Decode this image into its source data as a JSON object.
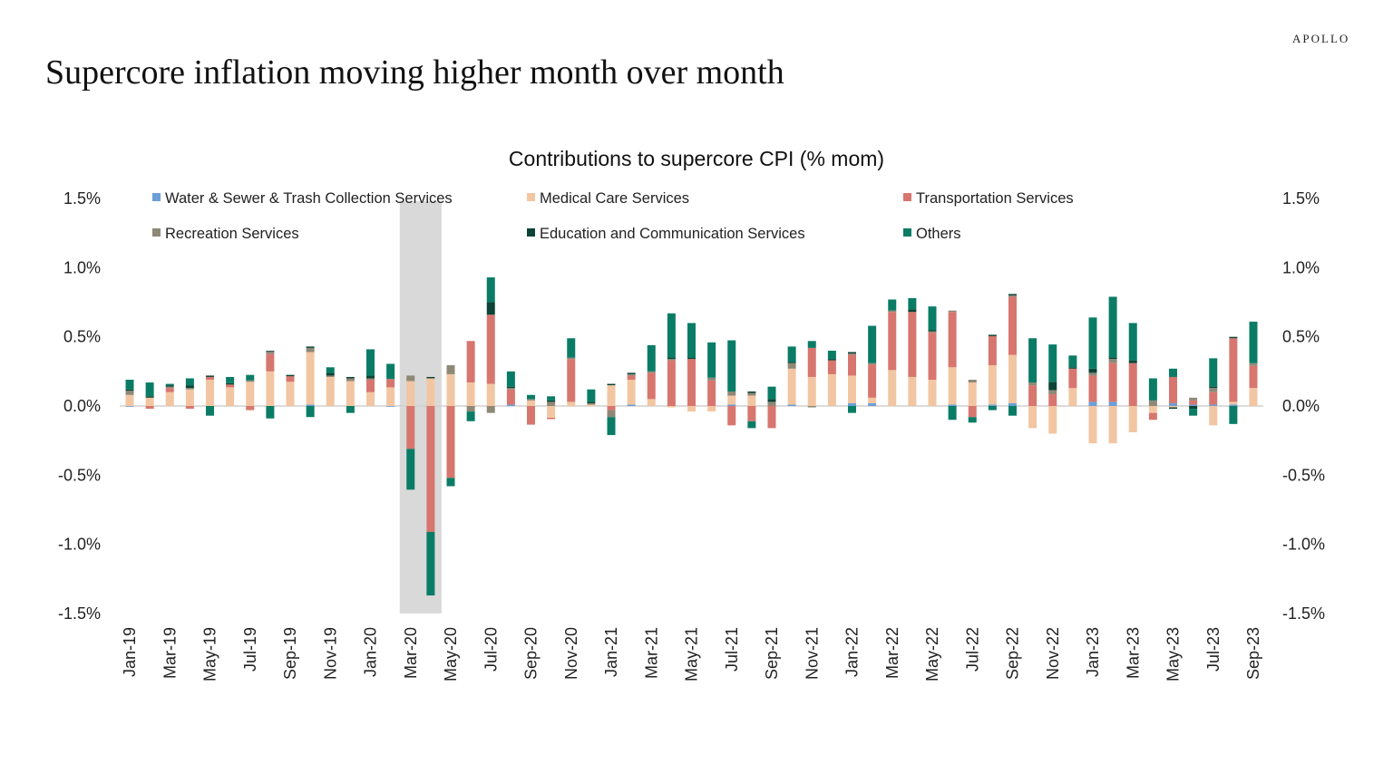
{
  "brand": "APOLLO",
  "title": "Supercore inflation moving higher month over month",
  "chart_data": {
    "type": "bar",
    "stacked": true,
    "title": "Contributions to supercore CPI (% mom)",
    "xlabel": "",
    "ylabel": "",
    "ylim": [
      -1.5,
      1.5
    ],
    "yticks": [
      1.5,
      1.0,
      0.5,
      0.0,
      -0.5,
      -1.0,
      -1.5
    ],
    "ytick_labels": [
      "1.5%",
      "1.0%",
      "0.5%",
      "0.0%",
      "-0.5%",
      "-1.0%",
      "-1.5%"
    ],
    "secondary_y_axis": true,
    "grid": false,
    "legend_position": "top",
    "shaded_range": [
      "Mar-20",
      "Apr-20"
    ],
    "shade_color": "#d9d9d9",
    "categories": [
      "Jan-19",
      "Feb-19",
      "Mar-19",
      "Apr-19",
      "May-19",
      "Jun-19",
      "Jul-19",
      "Aug-19",
      "Sep-19",
      "Oct-19",
      "Nov-19",
      "Dec-19",
      "Jan-20",
      "Feb-20",
      "Mar-20",
      "Apr-20",
      "May-20",
      "Jun-20",
      "Jul-20",
      "Aug-20",
      "Sep-20",
      "Oct-20",
      "Nov-20",
      "Dec-20",
      "Jan-21",
      "Feb-21",
      "Mar-21",
      "Apr-21",
      "May-21",
      "Jun-21",
      "Jul-21",
      "Aug-21",
      "Sep-21",
      "Oct-21",
      "Nov-21",
      "Dec-21",
      "Jan-22",
      "Feb-22",
      "Mar-22",
      "Apr-22",
      "May-22",
      "Jun-22",
      "Jul-22",
      "Aug-22",
      "Sep-22",
      "Oct-22",
      "Nov-22",
      "Dec-22",
      "Jan-23",
      "Feb-23",
      "Mar-23",
      "Apr-23",
      "May-23",
      "Jun-23",
      "Jul-23",
      "Aug-23",
      "Sep-23"
    ],
    "xtick_labels": [
      "Jan-19",
      "Mar-19",
      "May-19",
      "Jul-19",
      "Sep-19",
      "Nov-19",
      "Jan-20",
      "Mar-20",
      "May-20",
      "Jul-20",
      "Sep-20",
      "Nov-20",
      "Jan-21",
      "Mar-21",
      "May-21",
      "Jul-21",
      "Sep-21",
      "Nov-21",
      "Jan-22",
      "Mar-22",
      "May-22",
      "Jul-22",
      "Sep-22",
      "Nov-22",
      "Jan-23",
      "Mar-23",
      "May-23",
      "Jul-23",
      "Sep-23"
    ],
    "series": [
      {
        "name": "Water & Sewer & Trash Collection Services",
        "color": "#6a9fd8",
        "values": [
          -0.005,
          0,
          0,
          0,
          0,
          0,
          0,
          0,
          0,
          0.01,
          0,
          0,
          0,
          -0.005,
          0,
          0,
          0,
          0,
          0,
          0.01,
          0,
          0,
          0,
          0,
          0,
          0.01,
          0,
          0,
          0,
          0,
          0.01,
          0,
          0,
          0.01,
          0,
          0,
          0.02,
          0.02,
          0,
          0,
          0,
          0.01,
          0,
          0.01,
          0.02,
          0,
          0,
          0,
          0.03,
          0.03,
          0,
          0,
          0.02,
          0.01,
          0.01,
          0.01,
          0
        ]
      },
      {
        "name": "Medical Care Services",
        "color": "#f2c6a2",
        "values": [
          0.08,
          0.06,
          0.1,
          0.12,
          0.19,
          0.135,
          0.175,
          0.25,
          0.175,
          0.38,
          0.21,
          0.18,
          0.1,
          0.135,
          0.18,
          0.2,
          0.23,
          0.17,
          0.16,
          0,
          0.04,
          -0.085,
          0.03,
          0.01,
          0.15,
          0.18,
          0.05,
          -0.01,
          -0.04,
          -0.04,
          0.065,
          0.075,
          0,
          0.26,
          0.21,
          0.23,
          0.2,
          0.04,
          0.26,
          0.21,
          0.19,
          0.27,
          0.17,
          0.285,
          0.35,
          -0.16,
          -0.2,
          0.13,
          -0.27,
          -0.27,
          -0.19,
          -0.05,
          -0.01,
          0,
          -0.14,
          0.02,
          0.13
        ]
      },
      {
        "name": "Transportation Services",
        "color": "#d7766f",
        "values": [
          0,
          -0.02,
          0.03,
          -0.02,
          0.02,
          0.02,
          -0.03,
          0.125,
          0.04,
          0,
          0,
          0,
          0.09,
          0.06,
          -0.31,
          -0.91,
          -0.52,
          0.3,
          0.5,
          0.11,
          -0.135,
          -0.01,
          0.31,
          0,
          -0.03,
          0.03,
          0.19,
          0.33,
          0.34,
          0.185,
          -0.14,
          -0.11,
          -0.16,
          0,
          0.21,
          0.1,
          0.15,
          0.24,
          0.42,
          0.47,
          0.34,
          0.4,
          -0.08,
          0.21,
          0.42,
          0.15,
          0.085,
          0.14,
          0.19,
          0.28,
          0.31,
          -0.05,
          0.19,
          0.03,
          0.09,
          0.46,
          0.16
        ]
      },
      {
        "name": "Recreation Services",
        "color": "#8f8877",
        "values": [
          0.03,
          0,
          0.01,
          0.01,
          0,
          0,
          0.01,
          0.02,
          0,
          0.03,
          0.01,
          0.02,
          0.01,
          0,
          0.04,
          0,
          0.065,
          -0.04,
          -0.05,
          0.01,
          0.01,
          0.03,
          0.01,
          0.01,
          -0.05,
          0.01,
          0.01,
          0.01,
          0,
          0.02,
          0.03,
          0.02,
          0.03,
          0.04,
          -0.01,
          0,
          0.01,
          0.01,
          0.01,
          0,
          0.01,
          0.01,
          0.02,
          0,
          0.01,
          0.02,
          0.03,
          0,
          0.02,
          0.03,
          0,
          0.04,
          0,
          0.02,
          0.03,
          0,
          0.02
        ]
      },
      {
        "name": "Education and Communication Services",
        "color": "#0c4436",
        "values": [
          0.01,
          0.01,
          0.01,
          0.02,
          0.01,
          0.01,
          0,
          0.005,
          0.01,
          0.01,
          0.02,
          0.01,
          0.02,
          0,
          0,
          0.01,
          0,
          0,
          0.09,
          0.01,
          0,
          0.01,
          0,
          0.01,
          0.01,
          0.01,
          0,
          0.01,
          0.01,
          0,
          0,
          0.01,
          0.02,
          0.01,
          0,
          0.01,
          0.01,
          0,
          0,
          0.02,
          0.01,
          0,
          0,
          0.01,
          0.01,
          0,
          0.06,
          0.01,
          0.03,
          0.01,
          0.02,
          0,
          -0.01,
          -0.02,
          0.01,
          0.01,
          0
        ]
      },
      {
        "name": "Others",
        "color": "#0a7c66",
        "values": [
          0.07,
          0.1,
          0.01,
          0.05,
          -0.07,
          0.045,
          0.04,
          -0.09,
          0,
          -0.08,
          0.04,
          -0.05,
          0.19,
          0.11,
          -0.295,
          -0.46,
          -0.06,
          -0.07,
          0.18,
          0.11,
          0.03,
          0.03,
          0.14,
          0.09,
          -0.13,
          0,
          0.19,
          0.32,
          0.25,
          0.255,
          0.37,
          -0.05,
          0.09,
          0.11,
          0.05,
          0.06,
          -0.05,
          0.27,
          0.08,
          0.08,
          0.17,
          -0.1,
          -0.04,
          -0.03,
          -0.07,
          0.32,
          0.27,
          0.085,
          0.37,
          0.44,
          0.27,
          0.16,
          0.06,
          -0.05,
          0.205,
          -0.13,
          0.3
        ]
      }
    ]
  }
}
